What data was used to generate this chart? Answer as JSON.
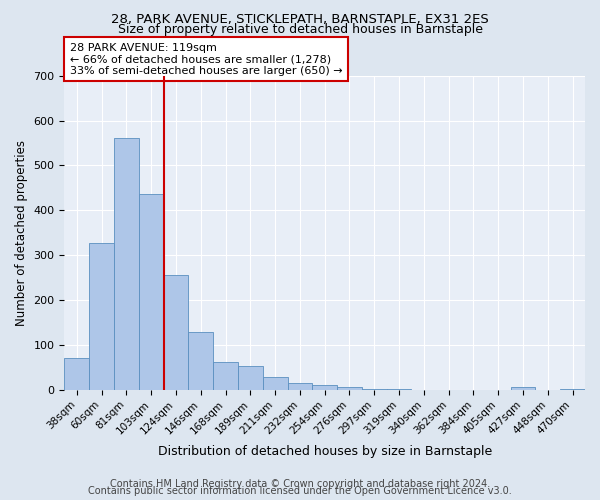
{
  "title1": "28, PARK AVENUE, STICKLEPATH, BARNSTAPLE, EX31 2ES",
  "title2": "Size of property relative to detached houses in Barnstaple",
  "xlabel": "Distribution of detached houses by size in Barnstaple",
  "ylabel": "Number of detached properties",
  "categories": [
    "38sqm",
    "60sqm",
    "81sqm",
    "103sqm",
    "124sqm",
    "146sqm",
    "168sqm",
    "189sqm",
    "211sqm",
    "232sqm",
    "254sqm",
    "276sqm",
    "297sqm",
    "319sqm",
    "340sqm",
    "362sqm",
    "384sqm",
    "405sqm",
    "427sqm",
    "448sqm",
    "470sqm"
  ],
  "values": [
    70,
    328,
    562,
    437,
    255,
    128,
    62,
    52,
    28,
    15,
    10,
    5,
    2,
    1,
    0,
    0,
    0,
    0,
    5,
    0,
    2
  ],
  "bar_color": "#aec6e8",
  "bar_edge_color": "#5a8fc0",
  "vline_x_index": 4,
  "vline_color": "#cc0000",
  "annotation_text": "28 PARK AVENUE: 119sqm\n← 66% of detached houses are smaller (1,278)\n33% of semi-detached houses are larger (650) →",
  "annotation_box_color": "#ffffff",
  "annotation_box_edge": "#cc0000",
  "ylim": [
    0,
    700
  ],
  "yticks": [
    0,
    100,
    200,
    300,
    400,
    500,
    600,
    700
  ],
  "footer1": "Contains HM Land Registry data © Crown copyright and database right 2024.",
  "footer2": "Contains public sector information licensed under the Open Government Licence v3.0.",
  "bg_color": "#dde6f0",
  "plot_bg_color": "#e8eef7",
  "title1_fontsize": 9.5,
  "title2_fontsize": 9,
  "xlabel_fontsize": 9,
  "ylabel_fontsize": 8.5,
  "annotation_fontsize": 8,
  "footer_fontsize": 7
}
